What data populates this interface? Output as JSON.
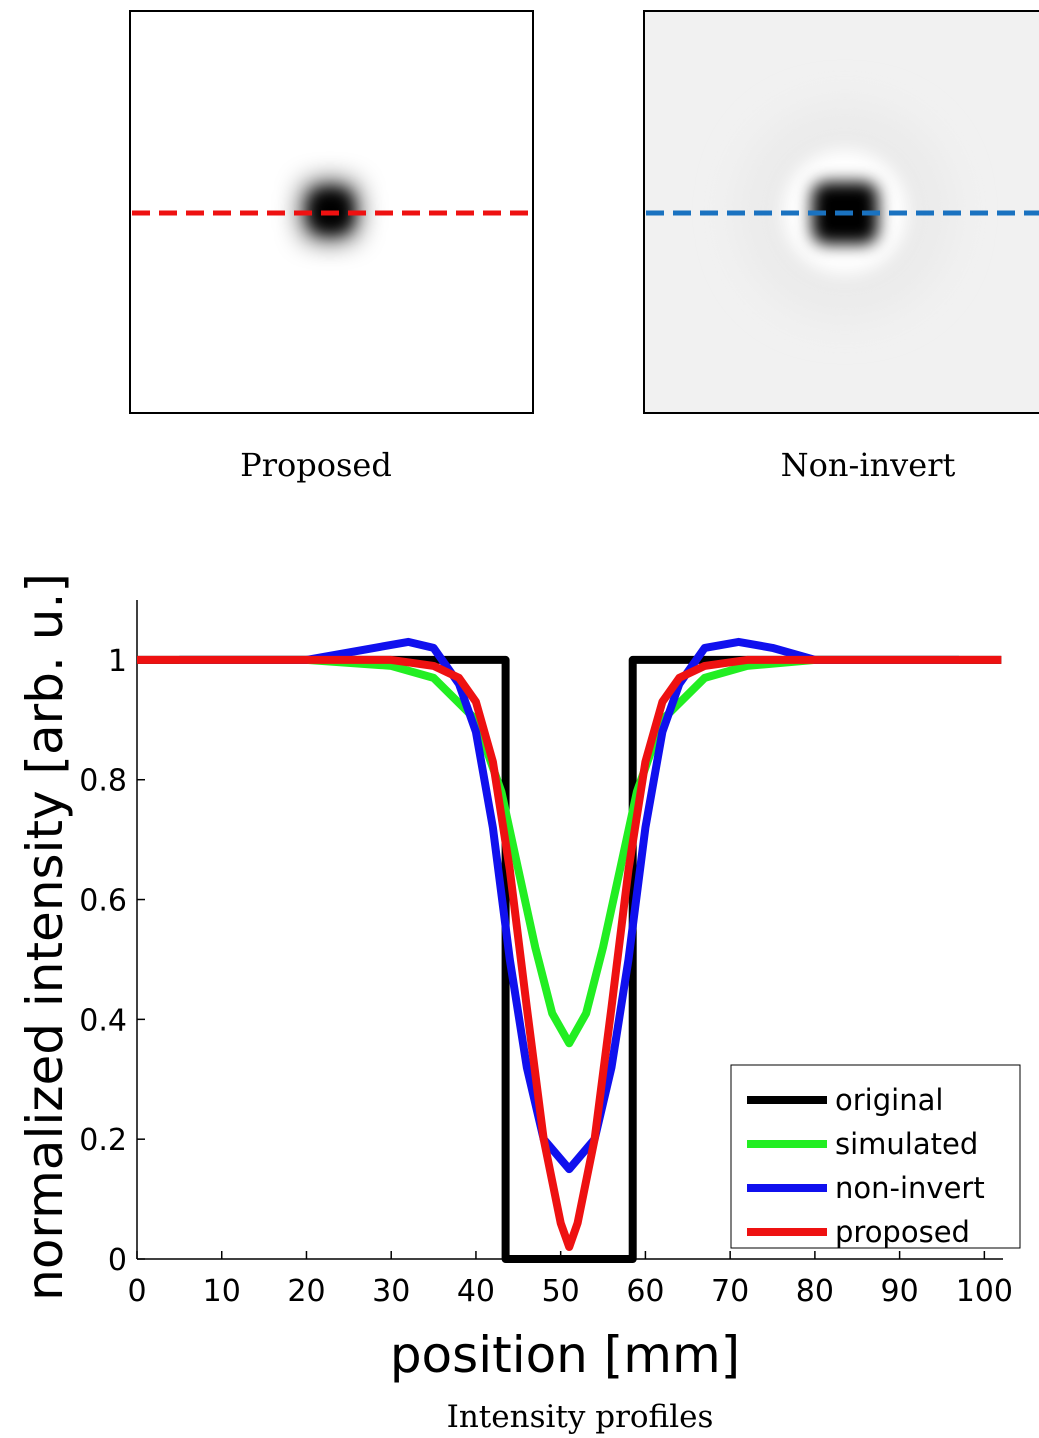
{
  "panels": [
    {
      "caption": "Proposed"
    },
    {
      "caption": "Non-invert"
    }
  ],
  "chart_data": {
    "type": "line",
    "xlabel": "position [mm]",
    "ylabel": "normalized intensity [arb. u.]",
    "caption": "Intensity profiles",
    "xlim": [
      0,
      102.2
    ],
    "ylim": [
      0,
      1.1
    ],
    "xticks": [
      0,
      10,
      20,
      30,
      40,
      50,
      60,
      70,
      80,
      90,
      100
    ],
    "yticks": [
      0,
      0.2,
      0.4,
      0.6,
      0.8,
      1
    ],
    "legend": "lower right",
    "series": [
      {
        "name": "original",
        "color": "#000000",
        "x": [
          0,
          43.5,
          43.5,
          58.5,
          58.5,
          102
        ],
        "values": [
          1,
          1,
          0,
          0,
          1,
          1
        ]
      },
      {
        "name": "simulated",
        "color": "#22ee22",
        "x": [
          5,
          20,
          30,
          35,
          40,
          43,
          45,
          47,
          49,
          51,
          53,
          55,
          57,
          59,
          62,
          67,
          72,
          80,
          97
        ],
        "values": [
          1,
          1,
          0.99,
          0.97,
          0.9,
          0.78,
          0.65,
          0.52,
          0.41,
          0.36,
          0.41,
          0.52,
          0.65,
          0.78,
          0.9,
          0.97,
          0.99,
          1,
          1
        ]
      },
      {
        "name": "non-invert",
        "color": "#1010ee",
        "x": [
          5,
          20,
          28,
          32,
          35,
          38,
          40,
          42,
          44,
          46,
          48,
          51,
          54,
          56,
          58,
          60,
          62,
          64,
          67,
          71,
          75,
          80,
          97
        ],
        "values": [
          1,
          1,
          1.02,
          1.03,
          1.02,
          0.96,
          0.88,
          0.72,
          0.5,
          0.32,
          0.2,
          0.15,
          0.2,
          0.32,
          0.5,
          0.72,
          0.88,
          0.96,
          1.02,
          1.03,
          1.02,
          1,
          1
        ]
      },
      {
        "name": "proposed",
        "color": "#ee1111",
        "x": [
          0,
          30,
          35,
          38,
          40,
          42,
          44,
          46,
          48,
          50,
          51,
          52,
          54,
          56,
          58,
          60,
          62,
          64,
          67,
          72,
          102
        ],
        "values": [
          1,
          1,
          0.99,
          0.97,
          0.93,
          0.83,
          0.65,
          0.42,
          0.2,
          0.06,
          0.02,
          0.06,
          0.2,
          0.42,
          0.65,
          0.83,
          0.93,
          0.97,
          0.99,
          1,
          1
        ]
      }
    ]
  }
}
